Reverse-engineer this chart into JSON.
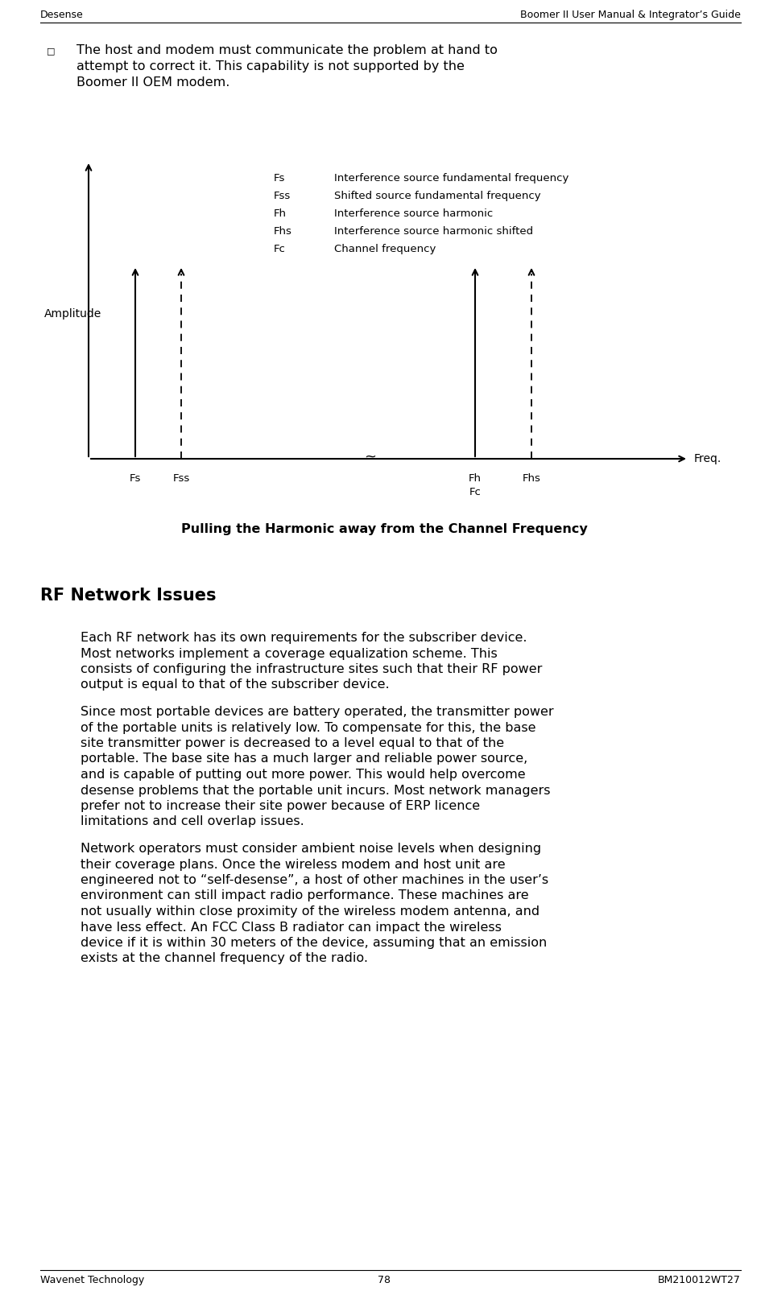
{
  "header_left": "Desense",
  "header_right": "Boomer II User Manual & Integrator’s Guide",
  "footer_left": "Wavenet Technology",
  "footer_center": "78",
  "footer_right": "BM210012WT27",
  "bullet_lines": [
    "The host and modem must communicate the problem at hand to",
    "attempt to correct it. This capability is not supported by the",
    "Boomer II OEM modem."
  ],
  "diagram_title": "Pulling the Harmonic away from the Channel Frequency",
  "diagram_legend": [
    [
      "Fs",
      "Interference source fundamental frequency"
    ],
    [
      "Fss",
      "Shifted source fundamental frequency"
    ],
    [
      "Fh",
      "Interference source harmonic"
    ],
    [
      "Fhs",
      "Interference source harmonic shifted"
    ],
    [
      "Fc",
      "Channel frequency"
    ]
  ],
  "diagram_ylabel": "Amplitude",
  "diagram_xlabel": "Freq.",
  "tilde_label": "~",
  "section_title": "RF Network Issues",
  "para1_lines": [
    "Each RF network has its own requirements for the subscriber device.",
    "Most networks implement a coverage equalization scheme. This",
    "consists of configuring the infrastructure sites such that their RF power",
    "output is equal to that of the subscriber device."
  ],
  "para2_lines": [
    "Since most portable devices are battery operated, the transmitter power",
    "of the portable units is relatively low. To compensate for this, the base",
    "site transmitter power is decreased to a level equal to that of the",
    "portable. The base site has a much larger and reliable power source,",
    "and is capable of putting out more power. This would help overcome",
    "desense problems that the portable unit incurs. Most network managers",
    "prefer not to increase their site power because of ERP licence",
    "limitations and cell overlap issues."
  ],
  "para3_lines": [
    "Network operators must consider ambient noise levels when designing",
    "their coverage plans. Once the wireless modem and host unit are",
    "engineered not to “self-desense”, a host of other machines in the user’s",
    "environment can still impact radio performance. These machines are",
    "not usually within close proximity of the wireless modem antenna, and",
    "have less effect. An FCC Class B radiator can impact the wireless",
    "device if it is within 30 meters of the device, assuming that an emission",
    "exists at the channel frequency of the radio."
  ],
  "bg_color": "#ffffff",
  "text_color": "#000000"
}
